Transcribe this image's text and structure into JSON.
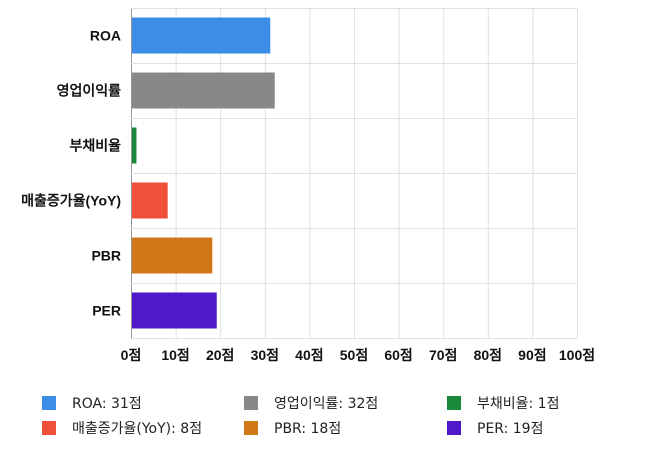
{
  "chart_data": {
    "type": "bar",
    "orientation": "horizontal",
    "categories": [
      "ROA",
      "영업이익률",
      "부채비율",
      "매출증가율(YoY)",
      "PBR",
      "PER"
    ],
    "values": [
      31,
      32,
      1,
      8,
      18,
      19
    ],
    "colors": [
      "#3b8de8",
      "#888888",
      "#1a8a3a",
      "#f0503a",
      "#d07818",
      "#5018c8"
    ],
    "xlim": [
      0,
      100
    ],
    "x_ticks": [
      "0점",
      "10점",
      "20점",
      "30점",
      "40점",
      "50점",
      "60점",
      "70점",
      "80점",
      "90점",
      "100점"
    ],
    "grid": true,
    "legend_position": "bottom",
    "legend": [
      {
        "label": "ROA: 31점",
        "color": "#3b8de8"
      },
      {
        "label": "영업이익률: 32점",
        "color": "#888888"
      },
      {
        "label": "부채비율: 1점",
        "color": "#1a8a3a"
      },
      {
        "label": "매출증가율(YoY): 8점",
        "color": "#f0503a"
      },
      {
        "label": "PBR: 18점",
        "color": "#d07818"
      },
      {
        "label": "PER: 19점",
        "color": "#5018c8"
      }
    ]
  }
}
